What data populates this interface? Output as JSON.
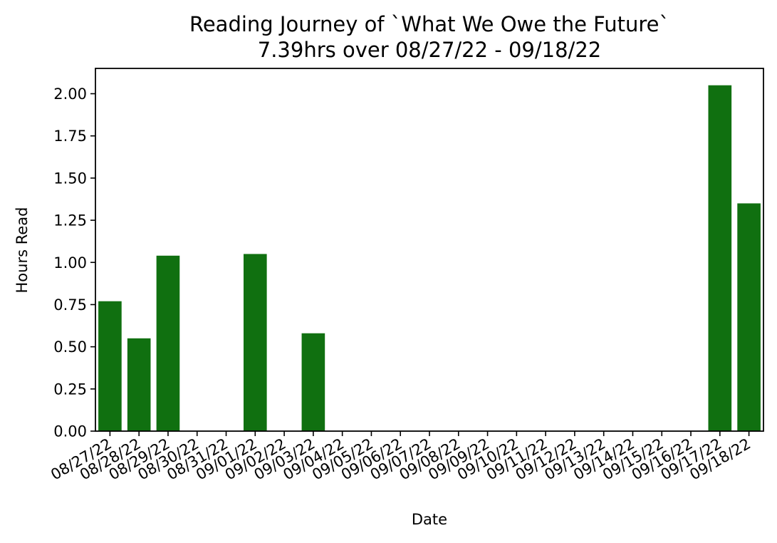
{
  "chart_data": {
    "type": "bar",
    "title": "Reading Journey of `What We Owe the Future`",
    "subtitle": "7.39hrs over 08/27/22 - 09/18/22",
    "xlabel": "Date",
    "ylabel": "Hours Read",
    "ylim": [
      0,
      2.15
    ],
    "yticks": [
      "0.00",
      "0.25",
      "0.50",
      "0.75",
      "1.00",
      "1.25",
      "1.50",
      "1.75",
      "2.00"
    ],
    "grid": false,
    "bar_color": "#107010",
    "categories": [
      "08/27/22",
      "08/28/22",
      "08/29/22",
      "08/30/22",
      "08/31/22",
      "09/01/22",
      "09/02/22",
      "09/03/22",
      "09/04/22",
      "09/05/22",
      "09/06/22",
      "09/07/22",
      "09/08/22",
      "09/09/22",
      "09/10/22",
      "09/11/22",
      "09/12/22",
      "09/13/22",
      "09/14/22",
      "09/15/22",
      "09/16/22",
      "09/17/22",
      "09/18/22"
    ],
    "values": [
      0.77,
      0.55,
      1.04,
      0,
      0,
      1.05,
      0,
      0.58,
      0,
      0,
      0,
      0,
      0,
      0,
      0,
      0,
      0,
      0,
      0,
      0,
      0,
      2.05,
      1.35
    ]
  }
}
